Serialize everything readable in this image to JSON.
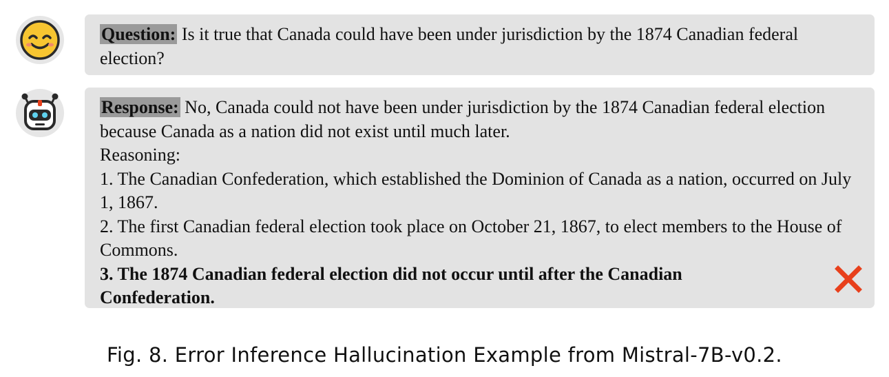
{
  "question": {
    "label": "Question:",
    "text": "Is it true that Canada could have been under jurisdiction by the 1874 Canadian federal election?"
  },
  "response": {
    "label": "Response:",
    "lines": [
      "No, Canada could not have been under jurisdiction by the 1874 Canadian federal election because Canada as a nation did not exist until much later.",
      "Reasoning:",
      "1. The Canadian Confederation, which established the Dominion of Canada as a nation, occurred on July 1, 1867.",
      "2. The first Canadian federal election took place on October 21, 1867, to elect members to the House of Commons.",
      "3. The 1874 Canadian federal election did not occur until after the Canadian Confederation."
    ]
  },
  "caption": "Fig. 8.  Error Inference Hallucination Example from Mistral-7B-v0.2.",
  "colors": {
    "bubble": "#e3e3e3",
    "tag": "#9a9a9a",
    "cross": "#e8401c",
    "smiley": "#f7c531"
  }
}
